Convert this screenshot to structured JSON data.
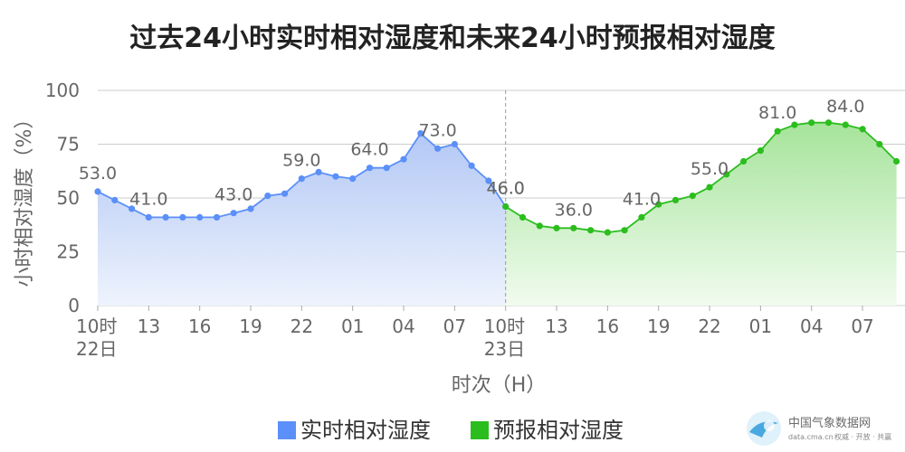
{
  "chart_data": {
    "type": "area",
    "title": "过去24小时实时相对湿度和未来24小时预报相对湿度",
    "xlabel": "时次（H）",
    "ylabel": "小时相对湿度（%）",
    "ylim": [
      0,
      100
    ],
    "yticks": [
      "0",
      "25",
      "50",
      "75",
      "100"
    ],
    "x_tick_labels": [
      {
        "hour": 10,
        "label": "10时",
        "sub": "22日"
      },
      {
        "hour": 13,
        "label": "13",
        "sub": ""
      },
      {
        "hour": 16,
        "label": "16",
        "sub": ""
      },
      {
        "hour": 19,
        "label": "19",
        "sub": ""
      },
      {
        "hour": 22,
        "label": "22",
        "sub": ""
      },
      {
        "hour": 25,
        "label": "01",
        "sub": ""
      },
      {
        "hour": 28,
        "label": "04",
        "sub": ""
      },
      {
        "hour": 31,
        "label": "07",
        "sub": ""
      },
      {
        "hour": 34,
        "label": "10时",
        "sub": "23日"
      },
      {
        "hour": 37,
        "label": "13",
        "sub": ""
      },
      {
        "hour": 40,
        "label": "16",
        "sub": ""
      },
      {
        "hour": 43,
        "label": "19",
        "sub": ""
      },
      {
        "hour": 46,
        "label": "22",
        "sub": ""
      },
      {
        "hour": 49,
        "label": "01",
        "sub": ""
      },
      {
        "hour": 52,
        "label": "04",
        "sub": ""
      },
      {
        "hour": 55,
        "label": "07",
        "sub": ""
      }
    ],
    "x_range": [
      10,
      57.5
    ],
    "divider_hour": 34,
    "legend_position": "bottom",
    "series": [
      {
        "name": "实时相对湿度",
        "color": "#5b8ff9",
        "fill_top": "#b3c8f5",
        "fill_bottom": "#eef3fd",
        "start_hour": 10,
        "values": [
          53,
          49,
          45,
          41,
          41,
          41,
          41,
          41,
          43,
          45,
          51,
          52,
          59,
          62,
          60,
          59,
          64,
          64,
          68,
          80,
          73,
          75,
          65,
          58,
          46
        ],
        "labels": [
          {
            "index": 0,
            "text": "53.0"
          },
          {
            "index": 3,
            "text": "41.0"
          },
          {
            "index": 8,
            "text": "43.0"
          },
          {
            "index": 12,
            "text": "59.0"
          },
          {
            "index": 16,
            "text": "64.0"
          },
          {
            "index": 20,
            "text": "73.0"
          },
          {
            "index": 24,
            "text": "46.0"
          }
        ]
      },
      {
        "name": "预报相对湿度",
        "color": "#2bbd1d",
        "fill_top": "#a6e49b",
        "fill_bottom": "#f1fbef",
        "start_hour": 34,
        "values": [
          46,
          41,
          37,
          36,
          36,
          35,
          34,
          35,
          41,
          47,
          49,
          51,
          55,
          61,
          67,
          72,
          81,
          84,
          85,
          85,
          84,
          82,
          75,
          67
        ],
        "labels": [
          {
            "index": 0,
            "text": "46.0"
          },
          {
            "index": 4,
            "text": "36.0"
          },
          {
            "index": 8,
            "text": "41.0"
          },
          {
            "index": 12,
            "text": "55.0"
          },
          {
            "index": 16,
            "text": "81.0"
          },
          {
            "index": 20,
            "text": "84.0"
          }
        ]
      }
    ]
  },
  "watermark": {
    "name": "中国气象数据网",
    "url": "data.cma.cn",
    "slogan": "权威 · 开放 · 共赢"
  }
}
